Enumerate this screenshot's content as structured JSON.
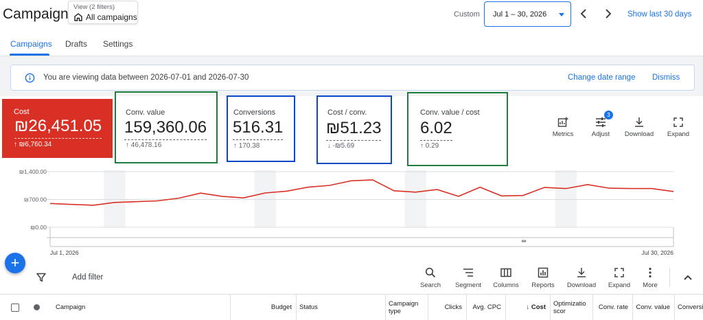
{
  "header": {
    "title": "Campaigns",
    "view_sub": "View (2 filters)",
    "view_main": "All campaigns",
    "custom_label": "Custom",
    "date_range": "Jul 1 – 30, 2026",
    "show_last": "Show last 30 days"
  },
  "tabs": [
    {
      "label": "Campaigns",
      "active": true
    },
    {
      "label": "Drafts"
    },
    {
      "label": "Settings"
    }
  ],
  "banner": {
    "text": "You are viewing data between 2026-07-01 and 2026-07-30",
    "change_range": "Change date range",
    "dismiss": "Dismiss"
  },
  "metrics": {
    "cost": {
      "label": "Cost",
      "value": "₪26,451.05",
      "delta": "↑ ₪6,760.34"
    },
    "conv_value": {
      "label": "Conv. value",
      "value": "159,360.06",
      "delta": "↑ 46,478.16"
    },
    "conversions": {
      "label": "Conversions",
      "value": "516.31",
      "delta": "↑ 170.38"
    },
    "cost_conv": {
      "label": "Cost / conv.",
      "value": "₪51.23",
      "delta": "↓ -₪5.69"
    },
    "roas": {
      "label": "Conv. value / cost",
      "value": "6.02",
      "delta": "↑ 0.29"
    }
  },
  "chart_tools": {
    "metrics": "Metrics",
    "adjust": "Adjust",
    "adjust_badge": "3",
    "download": "Download",
    "expand": "Expand"
  },
  "chart_data": {
    "type": "line",
    "series": [
      {
        "color": "#d93025",
        "values": [
          600,
          575,
          555,
          625,
          645,
          665,
          735,
          860,
          780,
          740,
          865,
          910,
          1010,
          1055,
          1170,
          1195,
          920,
          885,
          950,
          780,
          1010,
          790,
          800,
          1005,
          975,
          1075,
          985,
          975,
          975,
          900
        ]
      }
    ],
    "x": [
      "Jul 1, 2026",
      "Jul 2",
      "Jul 3",
      "Jul 4",
      "Jul 5",
      "Jul 6",
      "Jul 7",
      "Jul 8",
      "Jul 9",
      "Jul 10",
      "Jul 11",
      "Jul 12",
      "Jul 13",
      "Jul 14",
      "Jul 15",
      "Jul 16",
      "Jul 17",
      "Jul 18",
      "Jul 19",
      "Jul 20",
      "Jul 21",
      "Jul 22",
      "Jul 23",
      "Jul 24",
      "Jul 25",
      "Jul 26",
      "Jul 27",
      "Jul 28",
      "Jul 29",
      "Jul 30, 2026"
    ],
    "x_labels": [
      "Jul 1, 2026",
      "Jul 30, 2026"
    ],
    "y_ticks": [
      "₪0.00",
      "₪700.00",
      "₪1,400.00"
    ],
    "ylim": [
      0,
      1400
    ],
    "shaded_day_indices": [
      3,
      10,
      17,
      24
    ],
    "grid": true
  },
  "table_toolbar": {
    "add_filter": "Add filter",
    "search": "Search",
    "segment": "Segment",
    "columns": "Columns",
    "reports": "Reports",
    "download": "Download",
    "expand": "Expand",
    "more": "More"
  },
  "table": {
    "columns": [
      "Campaign",
      "Budget",
      "Status",
      "Campaign type",
      "Clicks",
      "Avg. CPC",
      "↓ Cost",
      "Optimizatio scor",
      "Conv. rate",
      "Conv. value",
      "Conversi"
    ]
  }
}
